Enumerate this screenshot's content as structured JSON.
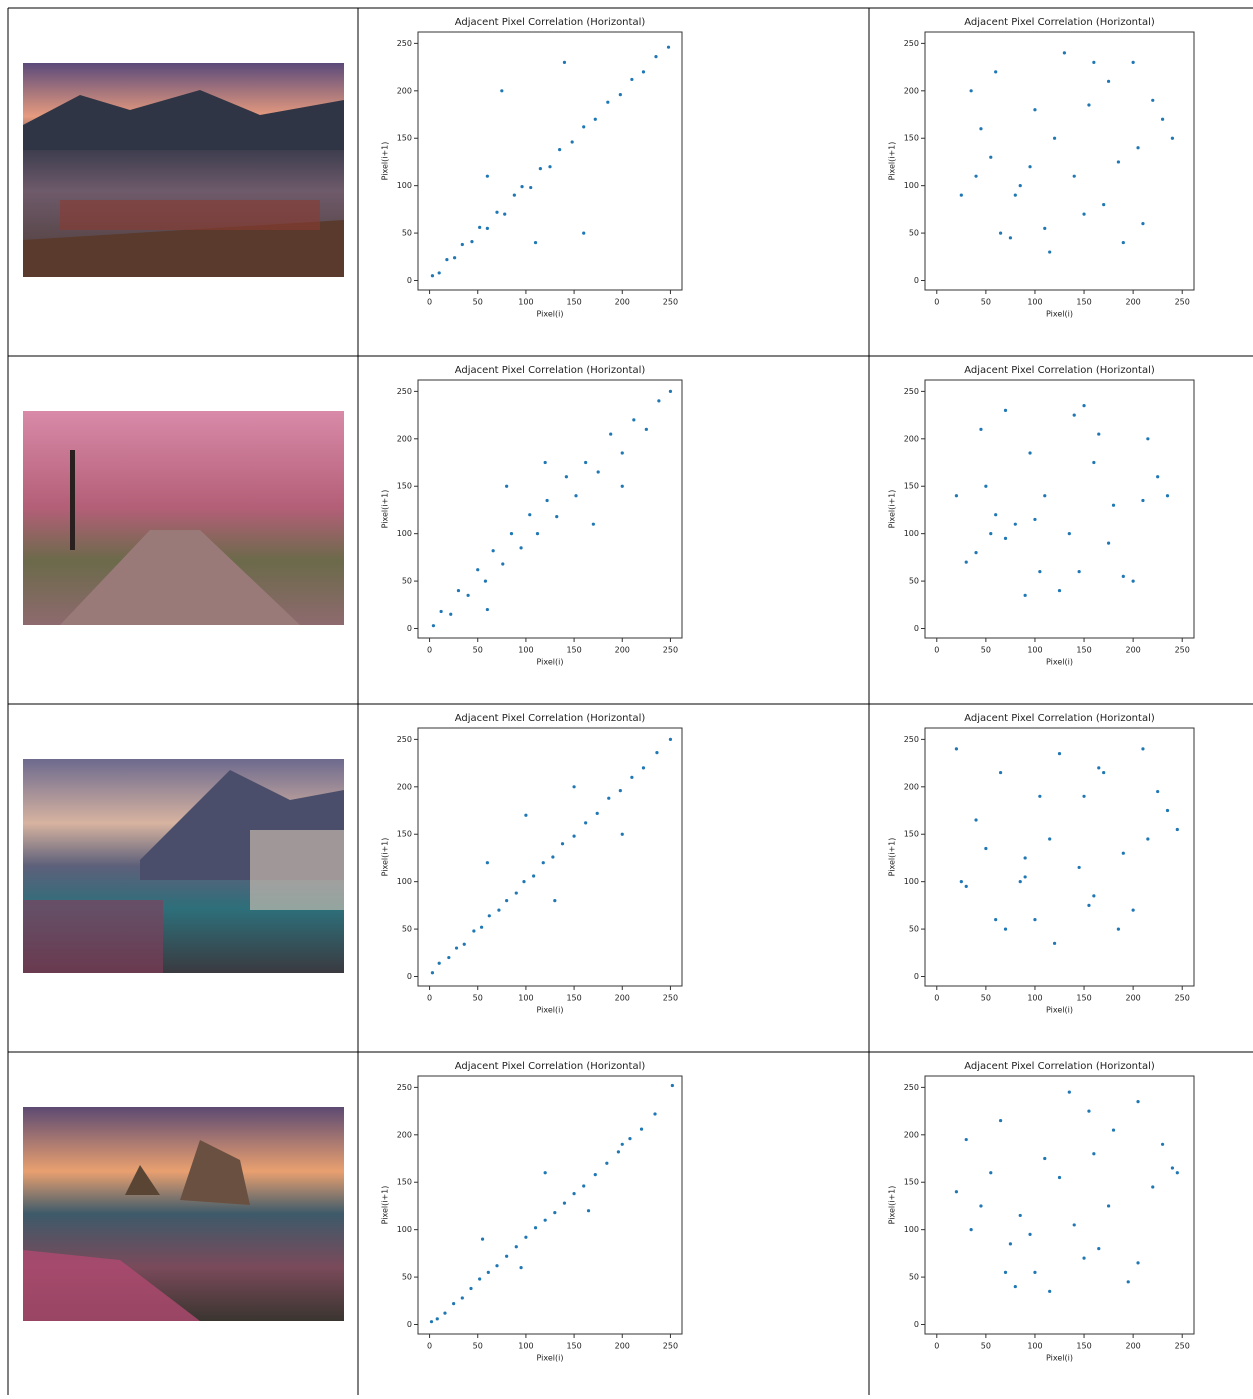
{
  "chart_data": [
    {
      "type": "scatter",
      "title": "Adjacent Pixel Correlation (Horizontal)",
      "xlabel": "Pixel(i)",
      "ylabel": "Pixel(i+1)",
      "color": "#1f77b4",
      "x": [
        3,
        10,
        18,
        26,
        34,
        44,
        52,
        60,
        70,
        78,
        88,
        96,
        105,
        115,
        125,
        135,
        148,
        160,
        172,
        185,
        198,
        210,
        222,
        235,
        248,
        75,
        160,
        140,
        60,
        110
      ],
      "values": [
        5,
        8,
        22,
        24,
        38,
        41,
        56,
        55,
        72,
        70,
        90,
        99,
        98,
        118,
        120,
        138,
        146,
        162,
        170,
        188,
        196,
        212,
        220,
        236,
        246,
        200,
        50,
        230,
        110,
        40
      ],
      "xlim": [
        -12,
        262
      ],
      "ylim": [
        -10,
        262
      ],
      "xticks": [
        0,
        50,
        100,
        150,
        200,
        250
      ],
      "yticks": [
        0,
        50,
        100,
        150,
        200,
        250
      ]
    },
    {
      "type": "scatter",
      "title": "Adjacent Pixel Correlation (Horizontal)",
      "xlabel": "Pixel(i)",
      "ylabel": "Pixel(i+1)",
      "color": "#1f77b4",
      "x": [
        35,
        210,
        120,
        80,
        160,
        55,
        190,
        100,
        140,
        230,
        65,
        175,
        95,
        25,
        150,
        205,
        115,
        45,
        130,
        85,
        220,
        170,
        60,
        110,
        185,
        40,
        240,
        75,
        155,
        200
      ],
      "values": [
        200,
        60,
        150,
        90,
        230,
        130,
        40,
        180,
        110,
        170,
        50,
        210,
        120,
        90,
        70,
        140,
        30,
        160,
        240,
        100,
        190,
        80,
        220,
        55,
        125,
        110,
        150,
        45,
        185,
        230
      ],
      "xlim": [
        -12,
        262
      ],
      "ylim": [
        -10,
        262
      ],
      "xticks": [
        0,
        50,
        100,
        150,
        200,
        250
      ],
      "yticks": [
        0,
        50,
        100,
        150,
        200,
        250
      ]
    },
    {
      "type": "scatter",
      "title": "Adjacent Pixel Correlation (Horizontal)",
      "xlabel": "Pixel(i)",
      "ylabel": "Pixel(i+1)",
      "color": "#1f77b4",
      "x": [
        4,
        12,
        22,
        30,
        40,
        50,
        58,
        66,
        76,
        85,
        95,
        104,
        112,
        122,
        132,
        142,
        152,
        162,
        175,
        188,
        200,
        212,
        225,
        238,
        250,
        80,
        170,
        120,
        60,
        200
      ],
      "values": [
        3,
        18,
        15,
        40,
        35,
        62,
        50,
        82,
        68,
        100,
        85,
        120,
        100,
        135,
        118,
        160,
        140,
        175,
        165,
        205,
        185,
        220,
        210,
        240,
        250,
        150,
        110,
        175,
        20,
        150
      ],
      "xlim": [
        -12,
        262
      ],
      "ylim": [
        -10,
        262
      ],
      "xticks": [
        0,
        50,
        100,
        150,
        200,
        250
      ],
      "yticks": [
        0,
        50,
        100,
        150,
        200,
        250
      ]
    },
    {
      "type": "scatter",
      "title": "Adjacent Pixel Correlation (Horizontal)",
      "xlabel": "Pixel(i)",
      "ylabel": "Pixel(i+1)",
      "color": "#1f77b4",
      "x": [
        45,
        190,
        110,
        70,
        150,
        60,
        200,
        95,
        135,
        225,
        30,
        165,
        100,
        40,
        145,
        210,
        125,
        50,
        140,
        80,
        215,
        175,
        70,
        105,
        180,
        55,
        235,
        90,
        160,
        20
      ],
      "values": [
        210,
        55,
        140,
        95,
        235,
        120,
        50,
        185,
        100,
        160,
        70,
        205,
        115,
        80,
        60,
        135,
        40,
        150,
        225,
        110,
        200,
        90,
        230,
        60,
        130,
        100,
        140,
        35,
        175,
        140
      ],
      "xlim": [
        -12,
        262
      ],
      "ylim": [
        -10,
        262
      ],
      "xticks": [
        0,
        50,
        100,
        150,
        200,
        250
      ],
      "yticks": [
        0,
        50,
        100,
        150,
        200,
        250
      ]
    },
    {
      "type": "scatter",
      "title": "Adjacent Pixel Correlation (Horizontal)",
      "xlabel": "Pixel(i)",
      "ylabel": "Pixel(i+1)",
      "color": "#1f77b4",
      "x": [
        3,
        10,
        20,
        28,
        36,
        46,
        54,
        62,
        72,
        80,
        90,
        98,
        108,
        118,
        128,
        138,
        150,
        162,
        174,
        186,
        198,
        210,
        222,
        236,
        250,
        60,
        100,
        150,
        200,
        130
      ],
      "values": [
        4,
        14,
        20,
        30,
        34,
        48,
        52,
        64,
        70,
        80,
        88,
        100,
        106,
        120,
        126,
        140,
        148,
        162,
        172,
        188,
        196,
        210,
        220,
        236,
        250,
        120,
        170,
        200,
        150,
        80
      ],
      "xlim": [
        -12,
        262
      ],
      "ylim": [
        -10,
        262
      ],
      "xticks": [
        0,
        50,
        100,
        150,
        200,
        250
      ],
      "yticks": [
        0,
        50,
        100,
        150,
        200,
        250
      ]
    },
    {
      "type": "scatter",
      "title": "Adjacent Pixel Correlation (Horizontal)",
      "xlabel": "Pixel(i)",
      "ylabel": "Pixel(i+1)",
      "color": "#1f77b4",
      "x": [
        20,
        200,
        115,
        85,
        165,
        50,
        185,
        105,
        145,
        235,
        60,
        170,
        90,
        30,
        155,
        215,
        120,
        40,
        125,
        90,
        225,
        160,
        65,
        100,
        190,
        25,
        245,
        70,
        150,
        210
      ],
      "values": [
        240,
        70,
        145,
        100,
        220,
        135,
        50,
        190,
        115,
        175,
        60,
        215,
        125,
        95,
        75,
        145,
        35,
        165,
        235,
        105,
        195,
        85,
        215,
        60,
        130,
        100,
        155,
        50,
        190,
        240
      ],
      "xlim": [
        -12,
        262
      ],
      "ylim": [
        -10,
        262
      ],
      "xticks": [
        0,
        50,
        100,
        150,
        200,
        250
      ],
      "yticks": [
        0,
        50,
        100,
        150,
        200,
        250
      ]
    },
    {
      "type": "scatter",
      "title": "Adjacent Pixel Correlation (Horizontal)",
      "xlabel": "Pixel(i)",
      "ylabel": "Pixel(i+1)",
      "color": "#1f77b4",
      "x": [
        2,
        8,
        16,
        25,
        34,
        43,
        52,
        61,
        70,
        80,
        90,
        100,
        110,
        120,
        130,
        140,
        150,
        160,
        172,
        184,
        196,
        208,
        220,
        234,
        252,
        55,
        120,
        165,
        200,
        95
      ],
      "values": [
        3,
        6,
        12,
        22,
        28,
        38,
        48,
        55,
        62,
        72,
        82,
        92,
        102,
        110,
        118,
        128,
        138,
        146,
        158,
        170,
        182,
        196,
        206,
        222,
        252,
        90,
        160,
        120,
        190,
        60
      ],
      "xlim": [
        -12,
        262
      ],
      "ylim": [
        -10,
        262
      ],
      "xticks": [
        0,
        50,
        100,
        150,
        200,
        250
      ],
      "yticks": [
        0,
        50,
        100,
        150,
        200,
        250
      ]
    },
    {
      "type": "scatter",
      "title": "Adjacent Pixel Correlation (Horizontal)",
      "xlabel": "Pixel(i)",
      "ylabel": "Pixel(i+1)",
      "color": "#1f77b4",
      "x": [
        30,
        205,
        125,
        75,
        155,
        45,
        195,
        110,
        140,
        240,
        70,
        180,
        85,
        20,
        150,
        220,
        115,
        55,
        135,
        95,
        230,
        165,
        65,
        100,
        175,
        35,
        245,
        80,
        160,
        205
      ],
      "values": [
        195,
        65,
        155,
        85,
        225,
        125,
        45,
        175,
        105,
        165,
        55,
        205,
        115,
        140,
        70,
        145,
        35,
        160,
        245,
        95,
        190,
        80,
        215,
        55,
        125,
        100,
        160,
        40,
        180,
        235
      ],
      "xlim": [
        -12,
        262
      ],
      "ylim": [
        -10,
        262
      ],
      "xticks": [
        0,
        50,
        100,
        150,
        200,
        250
      ],
      "yticks": [
        0,
        50,
        100,
        150,
        200,
        250
      ]
    }
  ]
}
